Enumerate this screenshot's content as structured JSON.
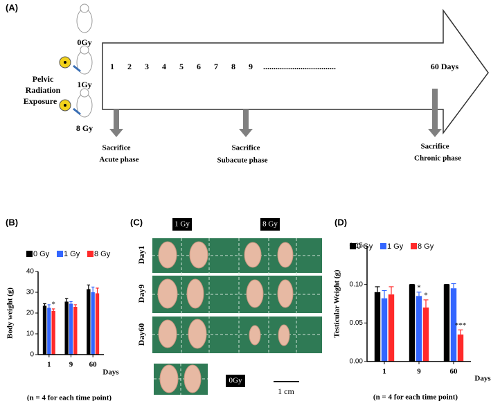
{
  "panel_a": {
    "label": "(A)",
    "doses": [
      "0Gy",
      "1Gy",
      "8 Gy"
    ],
    "exposure_lines": [
      "Pelvic",
      "Radiation",
      "Exposure"
    ],
    "days": [
      "1",
      "2",
      "3",
      "4",
      "5",
      "6",
      "7",
      "8",
      "9"
    ],
    "dots": "...................................",
    "end_day": "60 Days",
    "sacrifices": [
      {
        "title": "Sacrifice",
        "phase": "Acute phase"
      },
      {
        "title": "Sacrifice",
        "phase": "Subacute phase"
      },
      {
        "title": "Sacrifice",
        "phase": "Chronic phase"
      }
    ]
  },
  "panel_c": {
    "label": "(C)",
    "groups": [
      "1 Gy",
      "8 Gy"
    ],
    "rows": [
      "Day1",
      "Day9",
      "Day60"
    ],
    "control": "0Gy",
    "scale": "1 cm"
  },
  "chart_data": [
    {
      "type": "bar",
      "label": "(B)",
      "y_label": "Body weight (g)",
      "x_label": "Days",
      "note": "(n = 4 for each time point)",
      "categories": [
        "1",
        "9",
        "60"
      ],
      "series": [
        {
          "name": "0 Gy",
          "color": "#000000",
          "values": [
            23.5,
            25.5,
            31.5
          ],
          "errors": [
            1,
            1.5,
            2
          ]
        },
        {
          "name": "1 Gy",
          "color": "#3366ff",
          "values": [
            22.5,
            24.5,
            30
          ],
          "errors": [
            1.5,
            1,
            2.5
          ]
        },
        {
          "name": "8 Gy",
          "color": "#ff2a2a",
          "values": [
            21,
            23,
            29.5
          ],
          "errors": [
            1,
            1,
            2.5
          ]
        }
      ],
      "annotations": [
        {
          "text": "*",
          "series": 2,
          "category": 0
        }
      ],
      "ylim": [
        0,
        40
      ],
      "yticks": [
        0,
        10,
        20,
        30,
        40
      ]
    },
    {
      "type": "bar",
      "label": "(D)",
      "y_label": "Testicular Weight (g)",
      "x_label": "Days",
      "note": "(n = 4 for each time point)",
      "categories": [
        "1",
        "9",
        "60"
      ],
      "series": [
        {
          "name": "0 Gy",
          "color": "#000000",
          "values": [
            0.09,
            0.1,
            0.1
          ],
          "errors": [
            0.007,
            0,
            0
          ]
        },
        {
          "name": "1 Gy",
          "color": "#3366ff",
          "values": [
            0.082,
            0.085,
            0.095
          ],
          "errors": [
            0.01,
            0.005,
            0.006
          ]
        },
        {
          "name": "8 Gy",
          "color": "#ff2a2a",
          "values": [
            0.087,
            0.07,
            0.035
          ],
          "errors": [
            0.01,
            0.01,
            0.006
          ]
        }
      ],
      "annotations": [
        {
          "text": "*",
          "series": 1,
          "category": 1
        },
        {
          "text": "*",
          "series": 2,
          "category": 1
        },
        {
          "text": "***",
          "series": 2,
          "category": 2
        }
      ],
      "ylim": [
        0,
        0.15
      ],
      "yticks": [
        {
          "value": 0,
          "label": "0.00"
        },
        {
          "value": 0.05,
          "label": "0.05"
        },
        {
          "value": 0.1,
          "label": "0.10"
        },
        {
          "value": 0.15,
          "label": "0.15"
        }
      ]
    }
  ]
}
